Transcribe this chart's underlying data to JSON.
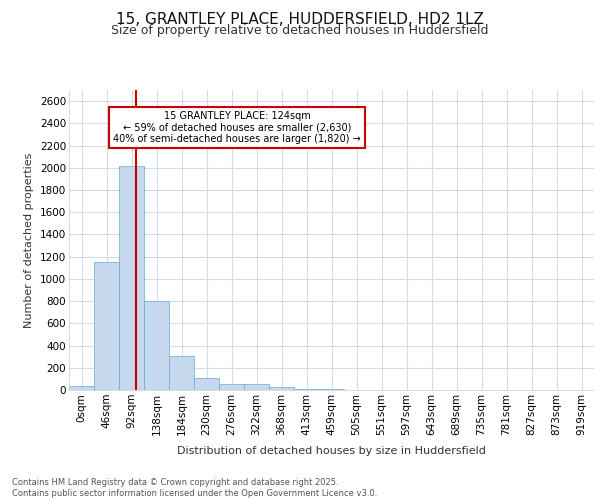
{
  "title_line1": "15, GRANTLEY PLACE, HUDDERSFIELD, HD2 1LZ",
  "title_line2": "Size of property relative to detached houses in Huddersfield",
  "xlabel": "Distribution of detached houses by size in Huddersfield",
  "ylabel": "Number of detached properties",
  "footer": "Contains HM Land Registry data © Crown copyright and database right 2025.\nContains public sector information licensed under the Open Government Licence v3.0.",
  "bar_labels": [
    "0sqm",
    "46sqm",
    "92sqm",
    "138sqm",
    "184sqm",
    "230sqm",
    "276sqm",
    "322sqm",
    "368sqm",
    "413sqm",
    "505sqm",
    "551sqm",
    "597sqm",
    "643sqm",
    "689sqm",
    "735sqm",
    "781sqm",
    "827sqm",
    "873sqm",
    "919sqm"
  ],
  "bar_labels_full": [
    "0sqm",
    "46sqm",
    "92sqm",
    "138sqm",
    "184sqm",
    "230sqm",
    "276sqm",
    "322sqm",
    "368sqm",
    "413sqm",
    "459sqm",
    "505sqm",
    "551sqm",
    "597sqm",
    "643sqm",
    "689sqm",
    "735sqm",
    "781sqm",
    "827sqm",
    "873sqm",
    "919sqm"
  ],
  "bar_values": [
    40,
    1150,
    2020,
    800,
    305,
    110,
    50,
    50,
    30,
    5,
    5,
    0,
    0,
    0,
    0,
    0,
    0,
    0,
    0,
    0,
    0
  ],
  "bar_color": "#c5d8ee",
  "bar_edgecolor": "#6aaad4",
  "vline_color": "#cc0000",
  "annotation_text": "15 GRANTLEY PLACE: 124sqm\n← 59% of detached houses are smaller (2,630)\n40% of semi-detached houses are larger (1,820) →",
  "annotation_box_edgecolor": "#cc0000",
  "ylim": [
    0,
    2700
  ],
  "yticks": [
    0,
    200,
    400,
    600,
    800,
    1000,
    1200,
    1400,
    1600,
    1800,
    2000,
    2200,
    2400,
    2600
  ],
  "background_color": "#ffffff",
  "plot_bg_color": "#ffffff",
  "grid_color": "#d0dce8",
  "title_fontsize": 11,
  "subtitle_fontsize": 9,
  "axis_label_fontsize": 8,
  "tick_fontsize": 7.5,
  "footer_fontsize": 6
}
